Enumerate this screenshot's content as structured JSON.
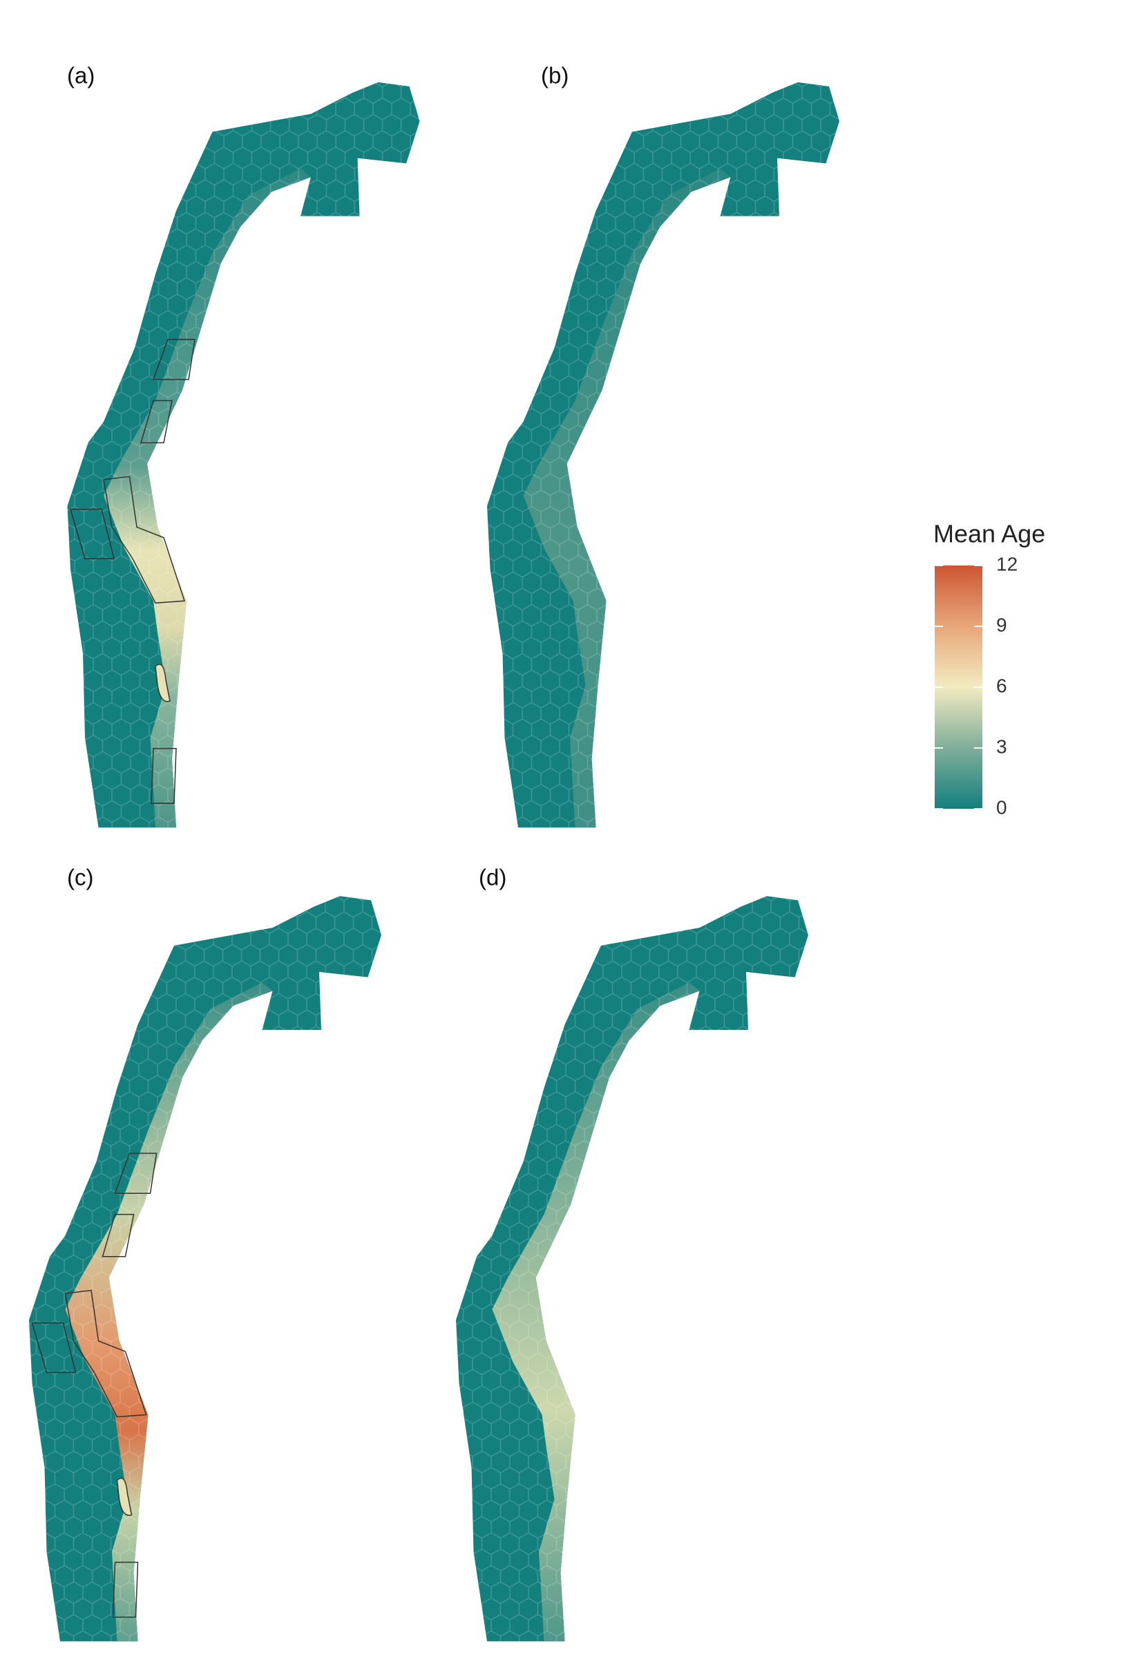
{
  "panels": [
    {
      "label": "(a)"
    },
    {
      "label": "(b)"
    },
    {
      "label": "(c)"
    },
    {
      "label": "(d)"
    }
  ],
  "legend": {
    "title": "Mean Age",
    "range": [
      0,
      12
    ],
    "ticks": [
      0,
      3,
      6,
      9,
      12
    ],
    "colors": [
      "#13807e",
      "#7fae9a",
      "#f2ebc0",
      "#e8a77a",
      "#cc5632"
    ]
  }
}
